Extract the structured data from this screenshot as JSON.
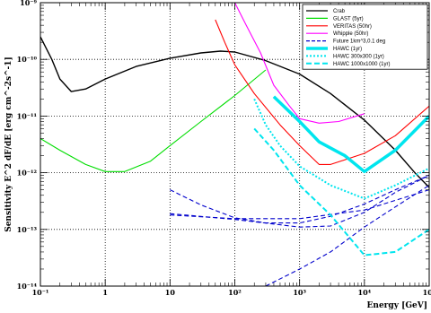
{
  "chart_data": {
    "type": "line",
    "title": "",
    "xlabel": "Energy [GeV]",
    "ylabel": "Sensitivity E^2 dF/dE [erg cm^-2s^-1]",
    "x_scale": "log",
    "y_scale": "log",
    "xlim": [
      0.1,
      100000
    ],
    "ylim": [
      1e-14,
      1e-09
    ],
    "grid": true,
    "legend_position": "top-right",
    "x_tick_labels": [
      "10⁻¹",
      "1",
      "10",
      "10²",
      "10³",
      "10⁴",
      "10⁵"
    ],
    "y_tick_labels": [
      "10⁻¹⁴",
      "10⁻¹³",
      "10⁻¹²",
      "10⁻¹¹",
      "10⁻¹⁰",
      "10⁻⁹"
    ],
    "series": [
      {
        "name": "Crab",
        "color": "#000000",
        "dash": "solid",
        "width": 1.4,
        "points": [
          [
            0.1,
            2.5e-10
          ],
          [
            0.15,
            1e-10
          ],
          [
            0.2,
            4.5e-11
          ],
          [
            0.3,
            2.7e-11
          ],
          [
            0.5,
            3e-11
          ],
          [
            1,
            4.5e-11
          ],
          [
            3,
            7.5e-11
          ],
          [
            10,
            1.05e-10
          ],
          [
            30,
            1.3e-10
          ],
          [
            60,
            1.4e-10
          ],
          [
            100,
            1.35e-10
          ],
          [
            300,
            9.5e-11
          ],
          [
            1000,
            5.5e-11
          ],
          [
            3000,
            2.5e-11
          ],
          [
            10000,
            8.5e-12
          ],
          [
            30000,
            2.5e-12
          ],
          [
            60000,
            1e-12
          ],
          [
            100000,
            5.5e-13
          ]
        ]
      },
      {
        "name": "GLAST (5yr)",
        "color": "#00dd00",
        "dash": "solid",
        "width": 1.1,
        "points": [
          [
            0.1,
            4e-12
          ],
          [
            0.2,
            2.5e-12
          ],
          [
            0.5,
            1.4e-12
          ],
          [
            1,
            1.05e-12
          ],
          [
            2,
            1.05e-12
          ],
          [
            5,
            1.6e-12
          ],
          [
            10,
            3e-12
          ],
          [
            30,
            8e-12
          ],
          [
            100,
            2.3e-11
          ],
          [
            300,
            6.5e-11
          ]
        ]
      },
      {
        "name": "VERITAS (50hr)",
        "color": "#ff0000",
        "dash": "solid",
        "width": 1.1,
        "points": [
          [
            50,
            5e-10
          ],
          [
            70,
            2e-10
          ],
          [
            100,
            8e-11
          ],
          [
            200,
            2.5e-11
          ],
          [
            500,
            7e-12
          ],
          [
            1000,
            3e-12
          ],
          [
            2000,
            1.4e-12
          ],
          [
            3000,
            1.4e-12
          ],
          [
            10000,
            2.2e-12
          ],
          [
            30000,
            4.5e-12
          ],
          [
            100000,
            1.5e-11
          ]
        ]
      },
      {
        "name": "Whipple (50hr)",
        "color": "#ff00ff",
        "dash": "solid",
        "width": 1.1,
        "points": [
          [
            100,
            1e-09
          ],
          [
            150,
            4e-10
          ],
          [
            250,
            1.3e-10
          ],
          [
            400,
            3.5e-11
          ],
          [
            700,
            1.5e-11
          ],
          [
            1000,
            9e-12
          ],
          [
            2000,
            7.5e-12
          ],
          [
            4000,
            8e-12
          ],
          [
            10000,
            1.1e-11
          ]
        ]
      },
      {
        "name": "Future 1km^3,0.1 deg",
        "color": "#0000cc",
        "dash": "5,3",
        "width": 1.1,
        "points": [
          [
            10,
            5e-13
          ],
          [
            30,
            2.7e-13
          ],
          [
            100,
            1.6e-13
          ],
          [
            300,
            1.3e-13
          ],
          [
            1000,
            1.3e-13
          ],
          [
            3000,
            1.7e-13
          ],
          [
            10000,
            2.8e-13
          ],
          [
            30000,
            5e-13
          ],
          [
            100000,
            9e-13
          ]
        ]
      },
      {
        "name": "Future 1km^3,0.1 deg",
        "color": "#0000cc",
        "dash": "5,3",
        "width": 1.1,
        "points": [
          [
            10,
            1.8e-13
          ],
          [
            100,
            1.55e-13
          ],
          [
            1000,
            1.55e-13
          ],
          [
            10000,
            2.2e-13
          ],
          [
            100000,
            5e-13
          ]
        ]
      },
      {
        "name": "Future 1km^3,0.1 deg",
        "color": "#0000cc",
        "dash": "5,3",
        "width": 1.1,
        "points": [
          [
            10,
            1.9e-13
          ],
          [
            100,
            1.5e-13
          ],
          [
            1000,
            1.1e-13
          ],
          [
            3000,
            1.15e-13
          ],
          [
            10000,
            2e-13
          ],
          [
            30000,
            4.5e-13
          ],
          [
            100000,
            9e-13
          ]
        ]
      },
      {
        "name": "Future 1km^3,0.1 deg",
        "color": "#0000cc",
        "dash": "5,3",
        "width": 1.1,
        "points": [
          [
            300,
            1e-14
          ],
          [
            1000,
            2e-14
          ],
          [
            3000,
            4e-14
          ],
          [
            10000,
            1.1e-13
          ],
          [
            30000,
            2.5e-13
          ],
          [
            100000,
            6e-13
          ]
        ]
      },
      {
        "name": "HAWC (1yr)",
        "color": "#00e5ee",
        "dash": "solid",
        "width": 3.5,
        "points": [
          [
            400,
            2.2e-11
          ],
          [
            1000,
            8e-12
          ],
          [
            2000,
            3.5e-12
          ],
          [
            5000,
            2e-12
          ],
          [
            10000,
            1.05e-12
          ],
          [
            30000,
            2.5e-12
          ],
          [
            100000,
            1e-11
          ]
        ]
      },
      {
        "name": "HAWC 300x300 (1yr)",
        "color": "#00e5ee",
        "dash": "2,2",
        "width": 2,
        "points": [
          [
            200,
            2e-11
          ],
          [
            300,
            7e-12
          ],
          [
            500,
            3e-12
          ],
          [
            1000,
            1.3e-12
          ],
          [
            3000,
            6e-13
          ],
          [
            10000,
            3.5e-13
          ],
          [
            30000,
            6e-13
          ],
          [
            100000,
            1.2e-12
          ]
        ]
      },
      {
        "name": "HAWC 1000x1000 (1yr)",
        "color": "#00e5ee",
        "dash": "6,3",
        "width": 2,
        "points": [
          [
            200,
            6e-12
          ],
          [
            400,
            2.5e-12
          ],
          [
            1000,
            6e-13
          ],
          [
            3000,
            1.8e-13
          ],
          [
            10000,
            3.5e-14
          ],
          [
            30000,
            4e-14
          ],
          [
            100000,
            1e-13
          ]
        ]
      }
    ],
    "legend": [
      {
        "label": "Crab",
        "color": "#000000",
        "dash": "solid",
        "width": 1.2
      },
      {
        "label": "GLAST (5yr)",
        "color": "#00dd00",
        "dash": "solid",
        "width": 1.2
      },
      {
        "label": "VERITAS (50hr)",
        "color": "#ff0000",
        "dash": "solid",
        "width": 1.2
      },
      {
        "label": "Whipple (50hr)",
        "color": "#ff00ff",
        "dash": "solid",
        "width": 1.2
      },
      {
        "label": "Future 1km^3,0.1 deg",
        "color": "#0000cc",
        "dash": "4,2",
        "width": 1.2
      },
      {
        "label": "HAWC (1yr)",
        "color": "#00e5ee",
        "dash": "solid",
        "width": 3.5
      },
      {
        "label": "HAWC 300x300 (1yr)",
        "color": "#00e5ee",
        "dash": "2,2",
        "width": 2
      },
      {
        "label": "HAWC 1000x1000 (1yr)",
        "color": "#00e5ee",
        "dash": "6,3",
        "width": 2
      }
    ]
  }
}
